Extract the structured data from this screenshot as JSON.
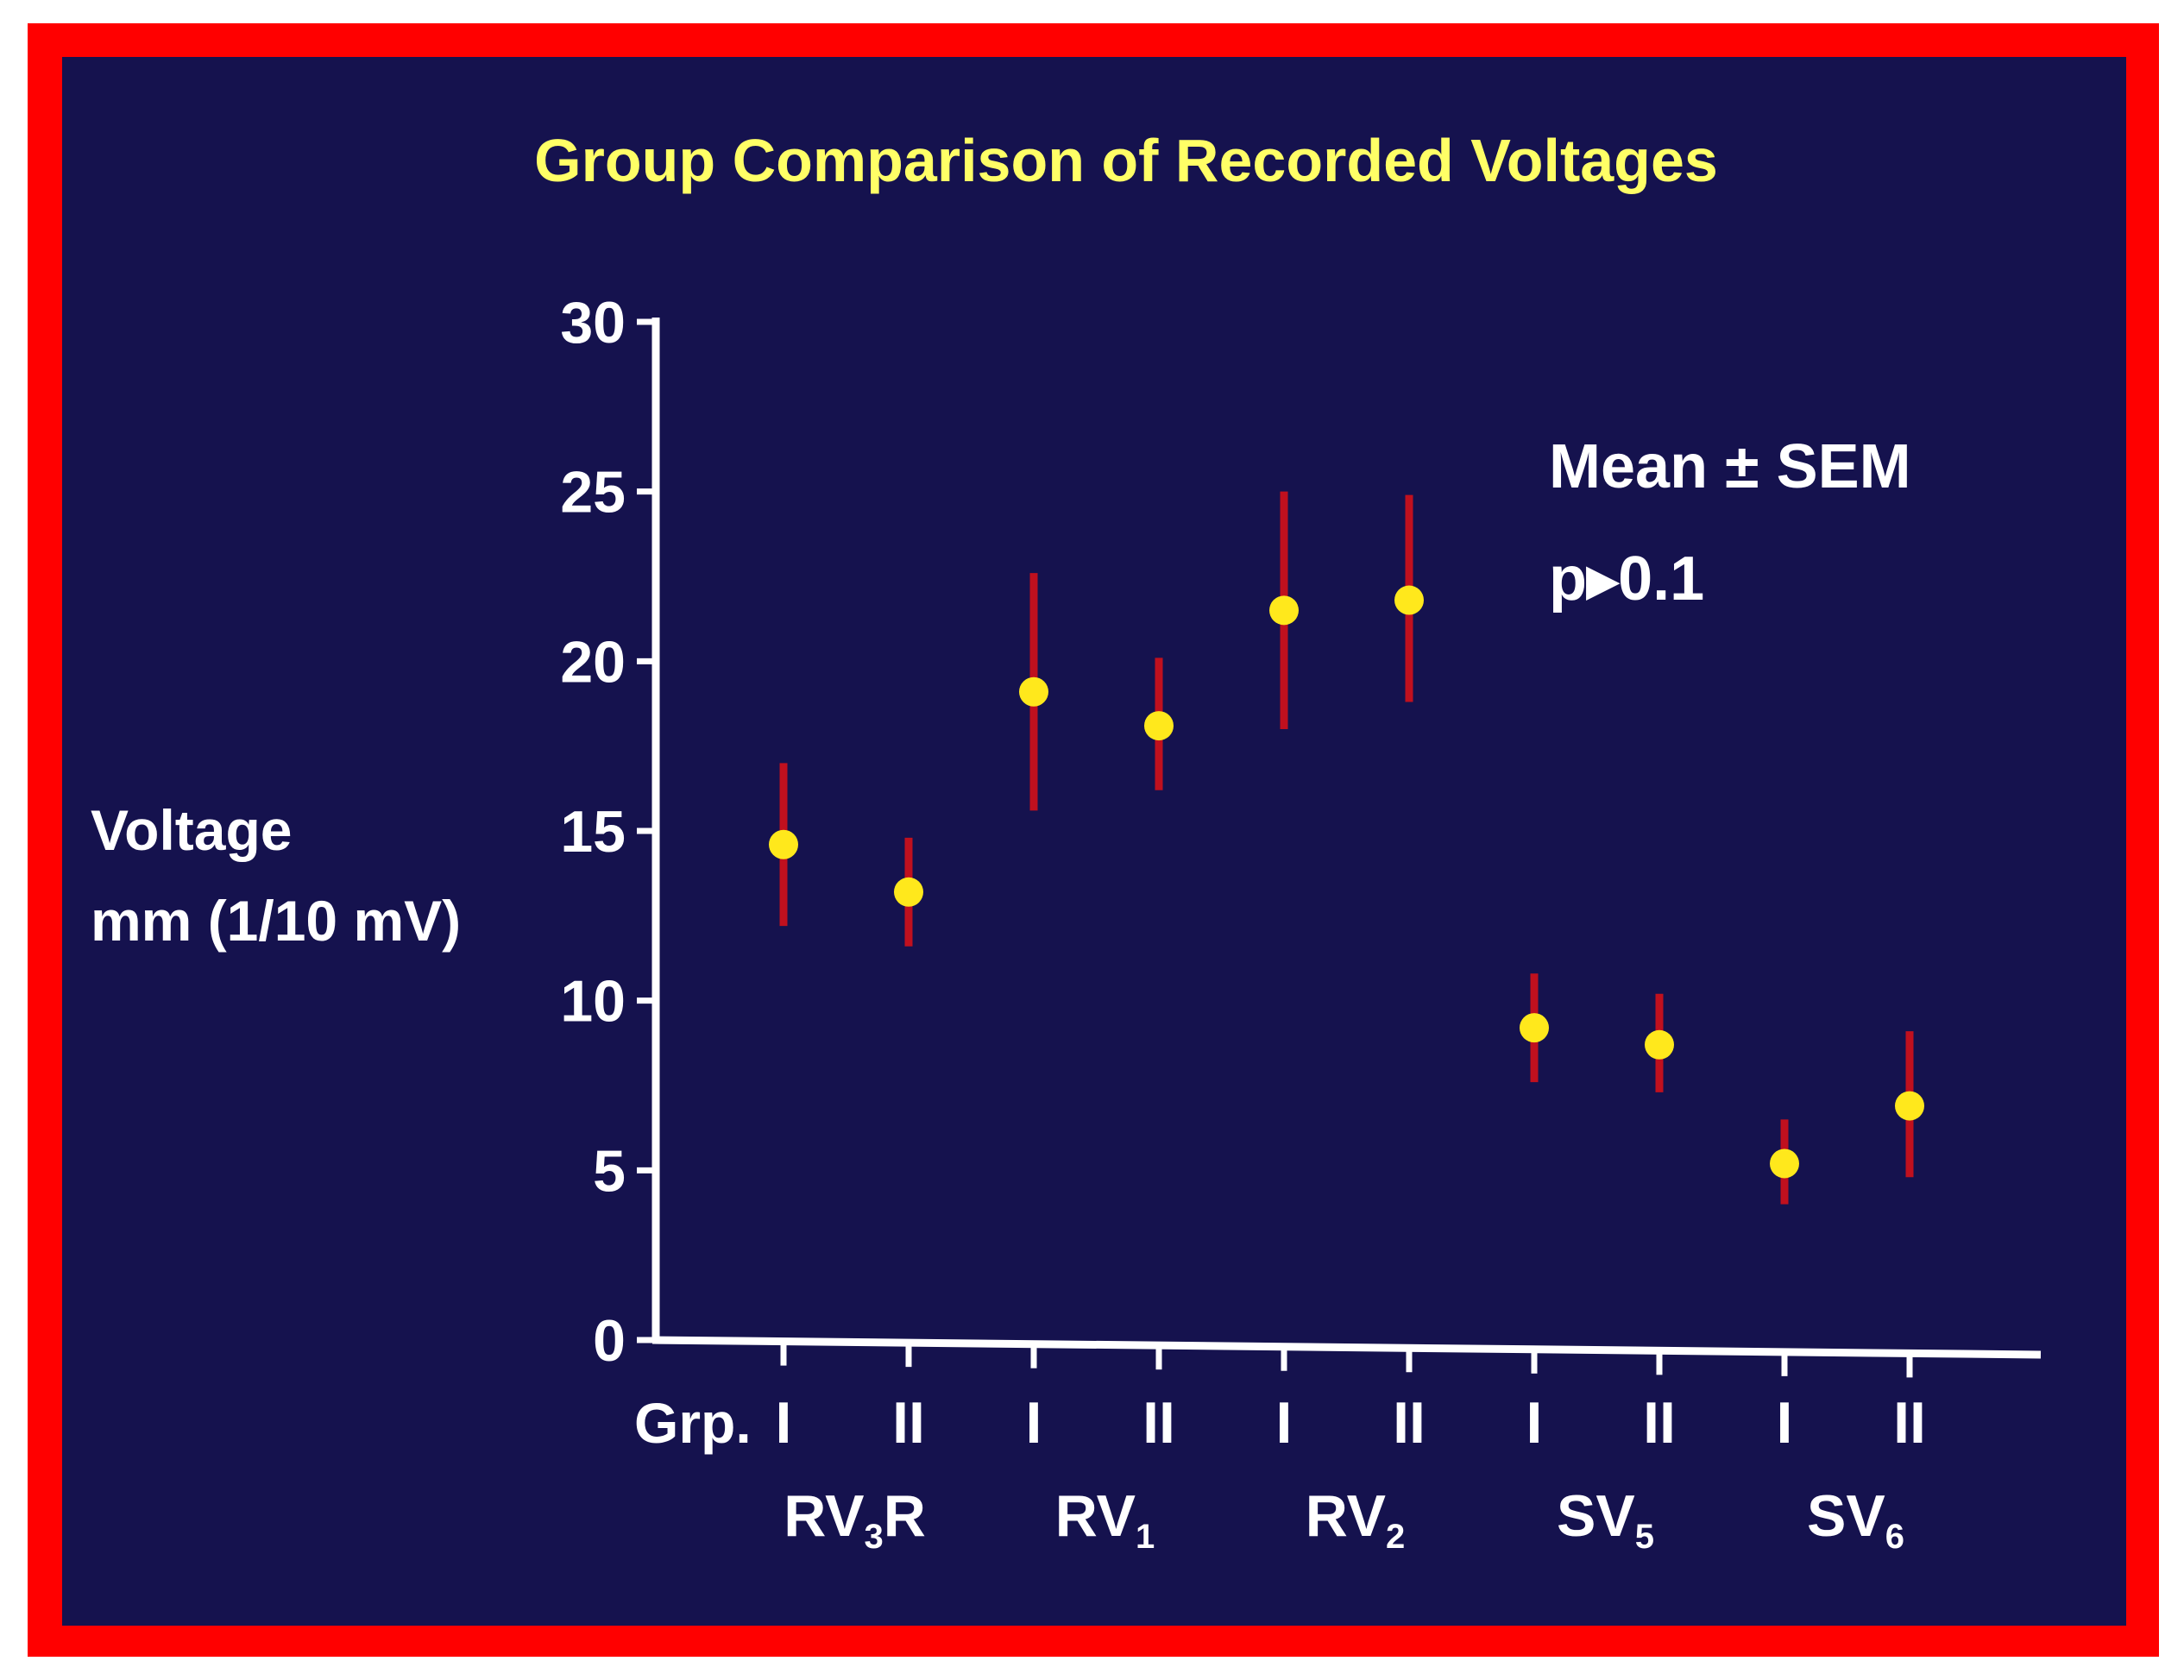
{
  "colors": {
    "frame": "#ff0000",
    "background": "#15124e",
    "title": "#ffff66",
    "text": "#ffffff",
    "axis": "#ffffff",
    "point": "#ffe81c",
    "error_bar": "#c0101e"
  },
  "chart_data": {
    "type": "scatter",
    "title": "Group Comparison of Recorded Voltages",
    "ylabel_lines": [
      "Voltage",
      "mm (1/10 mV)"
    ],
    "ylim": [
      0,
      30
    ],
    "yticks": [
      "0",
      "5",
      "10",
      "15",
      "20",
      "25",
      "30"
    ],
    "x_axis_prefix": "Grp.",
    "groups": [
      {
        "label": "RV",
        "sub": "3",
        "suffix": "R",
        "points": [
          {
            "group": "I",
            "mean": 14.6,
            "low": 12.2,
            "high": 17.0
          },
          {
            "group": "II",
            "mean": 13.2,
            "low": 11.6,
            "high": 14.8
          }
        ]
      },
      {
        "label": "RV",
        "sub": "1",
        "suffix": "",
        "points": [
          {
            "group": "I",
            "mean": 19.1,
            "low": 15.6,
            "high": 22.6
          },
          {
            "group": "II",
            "mean": 18.1,
            "low": 16.2,
            "high": 20.1
          }
        ]
      },
      {
        "label": "RV",
        "sub": "2",
        "suffix": "",
        "points": [
          {
            "group": "I",
            "mean": 21.5,
            "low": 18.0,
            "high": 25.0
          },
          {
            "group": "II",
            "mean": 21.8,
            "low": 18.8,
            "high": 24.9
          }
        ]
      },
      {
        "label": "SV",
        "sub": "5",
        "suffix": "",
        "points": [
          {
            "group": "I",
            "mean": 9.2,
            "low": 7.6,
            "high": 10.8
          },
          {
            "group": "II",
            "mean": 8.7,
            "low": 7.3,
            "high": 10.2
          }
        ]
      },
      {
        "label": "SV",
        "sub": "6",
        "suffix": "",
        "points": [
          {
            "group": "I",
            "mean": 5.2,
            "low": 4.0,
            "high": 6.5
          },
          {
            "group": "II",
            "mean": 6.9,
            "low": 4.8,
            "high": 9.1
          }
        ]
      }
    ],
    "annotations": [
      "Mean ± SEM",
      "p▸0.1"
    ]
  }
}
